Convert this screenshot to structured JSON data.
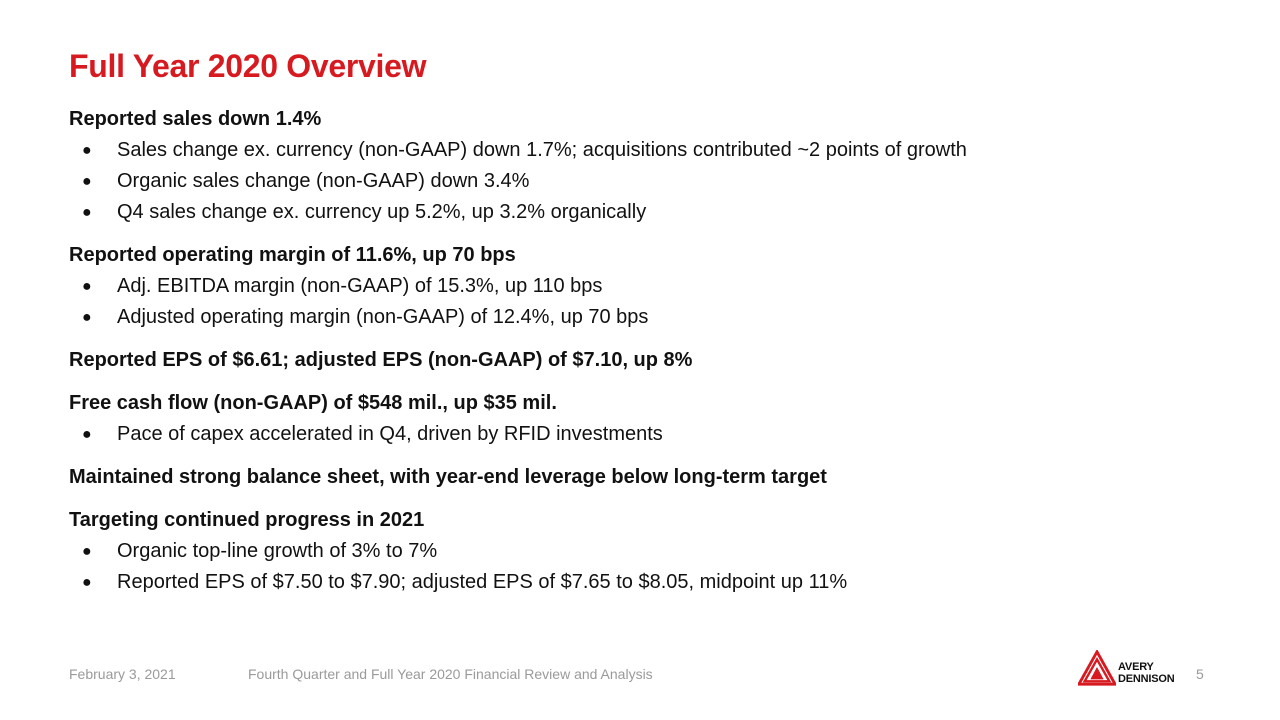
{
  "slide": {
    "title": "Full Year 2020 Overview",
    "sections": [
      {
        "heading": "Reported sales down 1.4%",
        "bullets": [
          "Sales change ex. currency (non-GAAP) down 1.7%; acquisitions contributed ~2 points of growth",
          "Organic sales change (non-GAAP) down 3.4%",
          "Q4 sales change ex. currency up 5.2%, up 3.2% organically"
        ]
      },
      {
        "heading": "Reported operating margin of 11.6%, up 70 bps",
        "bullets": [
          "Adj. EBITDA margin (non-GAAP) of 15.3%, up 110 bps",
          "Adjusted operating margin (non-GAAP) of 12.4%, up 70 bps"
        ]
      },
      {
        "heading": "Reported EPS of $6.61; adjusted EPS (non-GAAP) of $7.10, up 8%",
        "bullets": []
      },
      {
        "heading": "Free cash flow (non-GAAP) of $548 mil., up $35 mil.",
        "bullets": [
          "Pace of capex accelerated in Q4, driven by RFID investments"
        ]
      },
      {
        "heading": "Maintained strong balance sheet, with year-end leverage below long-term target",
        "bullets": []
      },
      {
        "heading": "Targeting continued progress in 2021",
        "bullets": [
          "Organic top-line growth of 3% to 7%",
          "Reported EPS of $7.50 to $7.90; adjusted EPS of $7.65 to $8.05, midpoint up 11%"
        ]
      }
    ],
    "bullet_glyph": "●"
  },
  "footer": {
    "date": "February 3, 2021",
    "document": "Fourth Quarter and Full Year 2020 Financial Review and Analysis",
    "page_number": "5"
  },
  "logo": {
    "line1": "AVERY",
    "line2": "DENNISON",
    "icon": "avery-dennison-logo-mark"
  },
  "colors": {
    "title": "#d71920",
    "brand_red": "#d71920",
    "text": "#111111",
    "footer": "#9a9a9a"
  }
}
